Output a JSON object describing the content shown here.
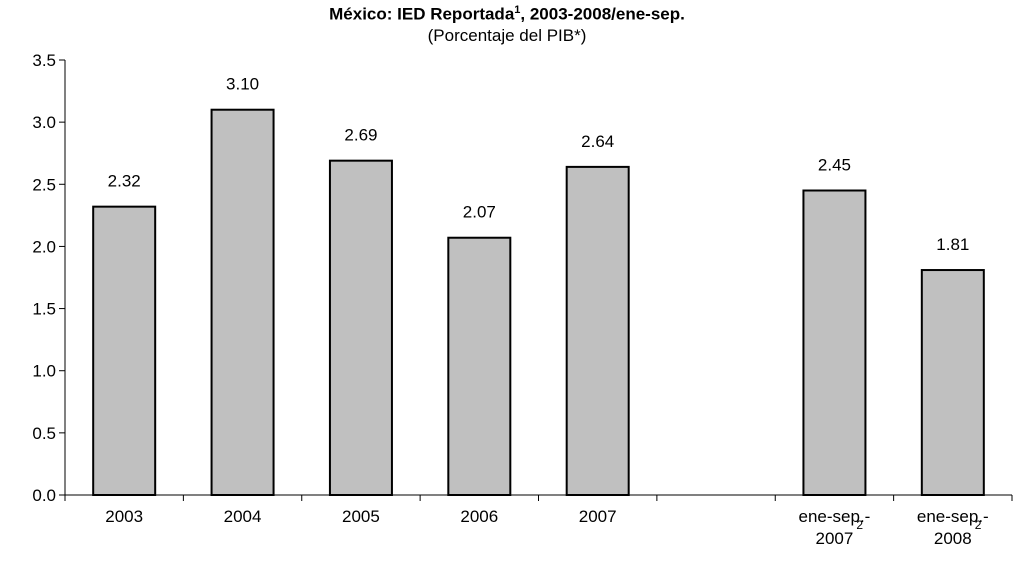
{
  "chart_data": {
    "type": "bar",
    "title": "México: IED Reportada",
    "title_superscript": "1",
    "title_suffix": ", 2003-2008/ene-sep.",
    "subtitle": "(Porcentaje del PIB*)",
    "categories": [
      {
        "line1": "2003",
        "sup": "",
        "line2": ""
      },
      {
        "line1": "2004",
        "sup": "",
        "line2": ""
      },
      {
        "line1": "2005",
        "sup": "",
        "line2": ""
      },
      {
        "line1": "2006",
        "sup": "",
        "line2": ""
      },
      {
        "line1": "2007",
        "sup": "",
        "line2": ""
      },
      {
        "line1": "",
        "sup": "",
        "line2": ""
      },
      {
        "line1": "ene-sep.-",
        "sup": "2",
        "line2": "2007"
      },
      {
        "line1": "ene-sep.-",
        "sup": "2",
        "line2": "2008"
      }
    ],
    "values": [
      2.32,
      3.1,
      2.69,
      2.07,
      2.64,
      null,
      2.45,
      1.81
    ],
    "data_labels": [
      "2.32",
      "3.10",
      "2.69",
      "2.07",
      "2.64",
      "",
      "2.45",
      "1.81"
    ],
    "yticks": [
      "0.0",
      "0.5",
      "1.0",
      "1.5",
      "2.0",
      "2.5",
      "3.0",
      "3.5"
    ],
    "ylim": [
      0,
      3.5
    ],
    "bar_color": "#c0c0c0",
    "bar_border": "#000000",
    "grid": false,
    "legend": false
  }
}
